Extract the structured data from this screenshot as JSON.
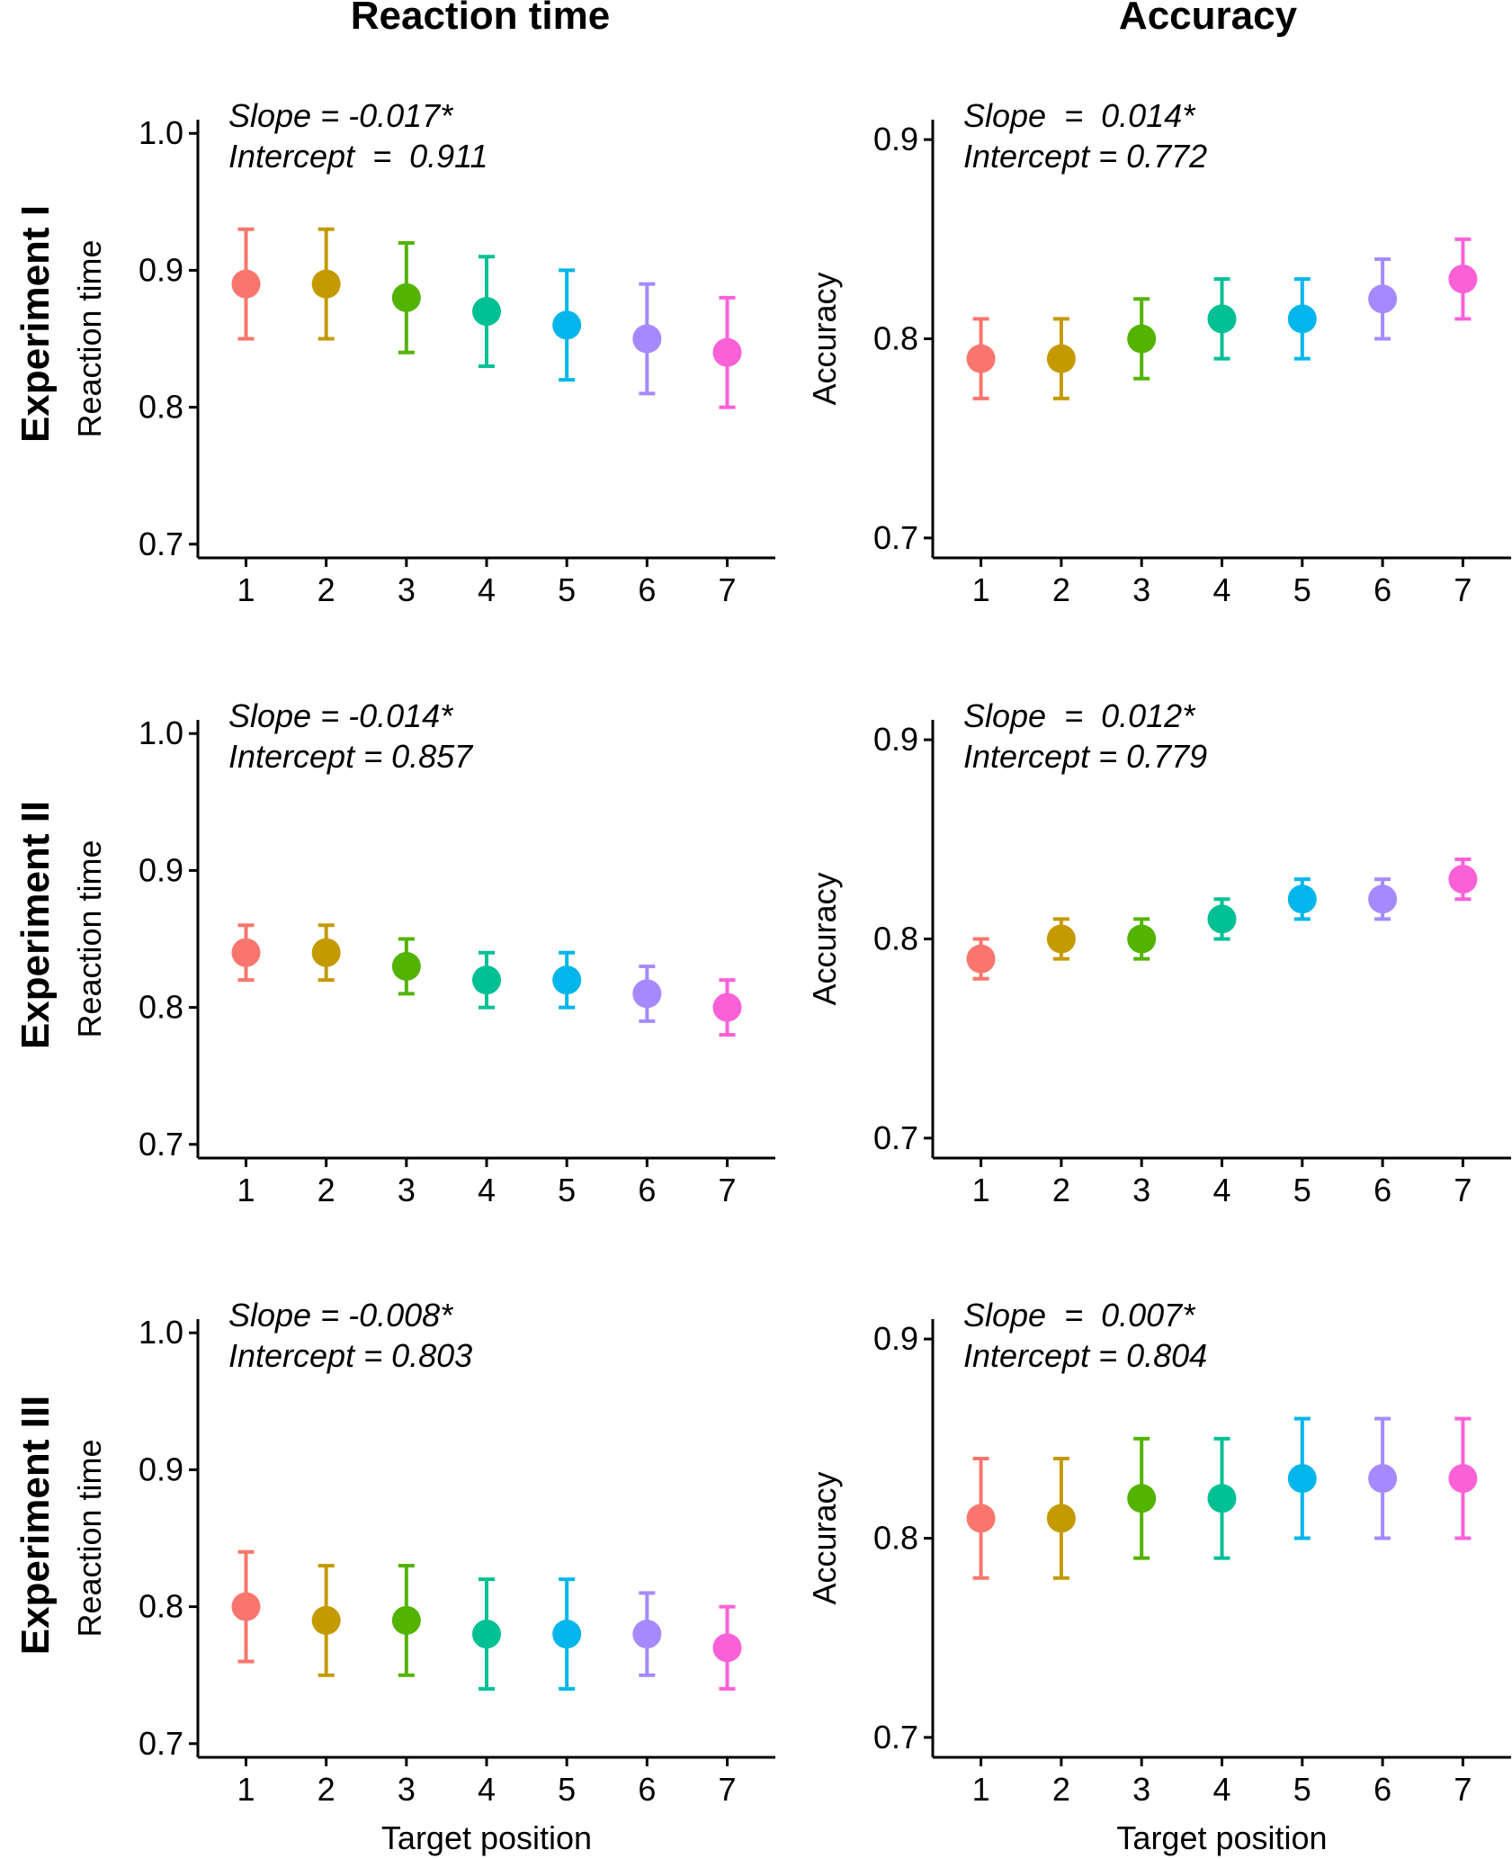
{
  "figure": {
    "column_titles": [
      "Reaction time",
      "Accuracy"
    ],
    "row_titles": [
      "Experiment I",
      "Experiment II",
      "Experiment III"
    ],
    "x_axis_title": "Target position"
  },
  "colors": [
    "#F8766D",
    "#C49A00",
    "#53B400",
    "#00C094",
    "#00B6EB",
    "#A58AFF",
    "#FB61D7"
  ],
  "chart_data": [
    {
      "type": "scatter",
      "experiment": "Experiment I",
      "measure": "Reaction time",
      "title": "",
      "xlabel": "",
      "ylabel": "Reaction time",
      "x": [
        1,
        2,
        3,
        4,
        5,
        6,
        7
      ],
      "y": [
        0.89,
        0.89,
        0.88,
        0.87,
        0.86,
        0.85,
        0.84
      ],
      "ymin": [
        0.85,
        0.85,
        0.84,
        0.83,
        0.82,
        0.81,
        0.8
      ],
      "ymax": [
        0.93,
        0.93,
        0.92,
        0.91,
        0.9,
        0.89,
        0.88
      ],
      "ylim": [
        0.69,
        1.01
      ],
      "yticks": [
        "0.7",
        "0.8",
        "0.9",
        "1.0"
      ],
      "xticks": [
        "1",
        "2",
        "3",
        "4",
        "5",
        "6",
        "7"
      ],
      "annotation": [
        "Slope = -0.017*",
        "Intercept  =  0.911"
      ],
      "grid": false
    },
    {
      "type": "scatter",
      "experiment": "Experiment I",
      "measure": "Accuracy",
      "title": "",
      "xlabel": "",
      "ylabel": "Accuracy",
      "x": [
        1,
        2,
        3,
        4,
        5,
        6,
        7
      ],
      "y": [
        0.79,
        0.79,
        0.8,
        0.81,
        0.81,
        0.82,
        0.83
      ],
      "ymin": [
        0.77,
        0.77,
        0.78,
        0.79,
        0.79,
        0.8,
        0.81
      ],
      "ymax": [
        0.81,
        0.81,
        0.82,
        0.83,
        0.83,
        0.84,
        0.85
      ],
      "ylim": [
        0.69,
        0.91
      ],
      "yticks": [
        "0.7",
        "0.8",
        "0.9"
      ],
      "xticks": [
        "1",
        "2",
        "3",
        "4",
        "5",
        "6",
        "7"
      ],
      "annotation": [
        "Slope  =  0.014*",
        "Intercept = 0.772"
      ],
      "grid": false
    },
    {
      "type": "scatter",
      "experiment": "Experiment II",
      "measure": "Reaction time",
      "title": "",
      "xlabel": "",
      "ylabel": "Reaction time",
      "x": [
        1,
        2,
        3,
        4,
        5,
        6,
        7
      ],
      "y": [
        0.84,
        0.84,
        0.83,
        0.82,
        0.82,
        0.81,
        0.8
      ],
      "ymin": [
        0.82,
        0.82,
        0.81,
        0.8,
        0.8,
        0.79,
        0.78
      ],
      "ymax": [
        0.86,
        0.86,
        0.85,
        0.84,
        0.84,
        0.83,
        0.82
      ],
      "ylim": [
        0.69,
        1.01
      ],
      "yticks": [
        "0.7",
        "0.8",
        "0.9",
        "1.0"
      ],
      "xticks": [
        "1",
        "2",
        "3",
        "4",
        "5",
        "6",
        "7"
      ],
      "annotation": [
        "Slope = -0.014*",
        "Intercept = 0.857"
      ],
      "grid": false
    },
    {
      "type": "scatter",
      "experiment": "Experiment II",
      "measure": "Accuracy",
      "title": "",
      "xlabel": "",
      "ylabel": "Accuracy",
      "x": [
        1,
        2,
        3,
        4,
        5,
        6,
        7
      ],
      "y": [
        0.79,
        0.8,
        0.8,
        0.81,
        0.82,
        0.82,
        0.83
      ],
      "ymin": [
        0.78,
        0.79,
        0.79,
        0.8,
        0.81,
        0.81,
        0.82
      ],
      "ymax": [
        0.8,
        0.81,
        0.81,
        0.82,
        0.83,
        0.83,
        0.84
      ],
      "ylim": [
        0.69,
        0.91
      ],
      "yticks": [
        "0.7",
        "0.8",
        "0.9"
      ],
      "xticks": [
        "1",
        "2",
        "3",
        "4",
        "5",
        "6",
        "7"
      ],
      "annotation": [
        "Slope  =  0.012*",
        "Intercept = 0.779"
      ],
      "grid": false
    },
    {
      "type": "scatter",
      "experiment": "Experiment III",
      "measure": "Reaction time",
      "title": "",
      "xlabel": "Target position",
      "ylabel": "Reaction time",
      "x": [
        1,
        2,
        3,
        4,
        5,
        6,
        7
      ],
      "y": [
        0.8,
        0.79,
        0.79,
        0.78,
        0.78,
        0.78,
        0.77
      ],
      "ymin": [
        0.76,
        0.75,
        0.75,
        0.74,
        0.74,
        0.75,
        0.74
      ],
      "ymax": [
        0.84,
        0.83,
        0.83,
        0.82,
        0.82,
        0.81,
        0.8
      ],
      "ylim": [
        0.69,
        1.01
      ],
      "yticks": [
        "0.7",
        "0.8",
        "0.9",
        "1.0"
      ],
      "xticks": [
        "1",
        "2",
        "3",
        "4",
        "5",
        "6",
        "7"
      ],
      "annotation": [
        "Slope = -0.008*",
        "Intercept = 0.803"
      ],
      "grid": false
    },
    {
      "type": "scatter",
      "experiment": "Experiment III",
      "measure": "Accuracy",
      "title": "",
      "xlabel": "Target position",
      "ylabel": "Accuracy",
      "x": [
        1,
        2,
        3,
        4,
        5,
        6,
        7
      ],
      "y": [
        0.81,
        0.81,
        0.82,
        0.82,
        0.83,
        0.83,
        0.83
      ],
      "ymin": [
        0.78,
        0.78,
        0.79,
        0.79,
        0.8,
        0.8,
        0.8
      ],
      "ymax": [
        0.84,
        0.84,
        0.85,
        0.85,
        0.86,
        0.86,
        0.86
      ],
      "ylim": [
        0.69,
        0.91
      ],
      "yticks": [
        "0.7",
        "0.8",
        "0.9"
      ],
      "xticks": [
        "1",
        "2",
        "3",
        "4",
        "5",
        "6",
        "7"
      ],
      "annotation": [
        "Slope  =  0.007*",
        "Intercept = 0.804"
      ],
      "grid": false
    }
  ]
}
